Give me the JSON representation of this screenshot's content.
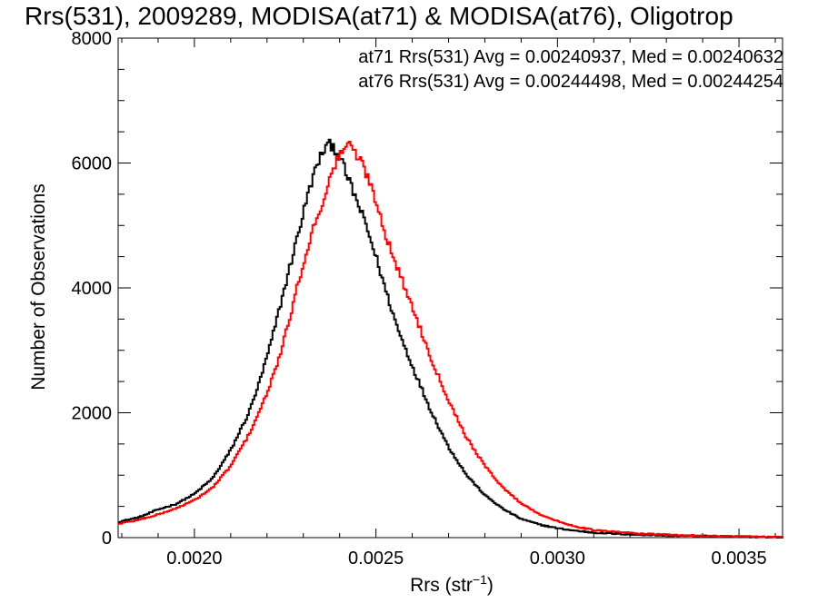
{
  "chart_data": {
    "type": "line",
    "title": "Rrs(531), 2009289, MODISA(at71) & MODISA(at76), Oligotrop",
    "xlabel": "Rrs (str",
    "xlabel_sup": "−1",
    "xlabel_close": ")",
    "ylabel": "Number of Observations",
    "xlim": [
      0.00179,
      0.00362
    ],
    "ylim": [
      0,
      8000
    ],
    "x_ticks": [
      0.002,
      0.0025,
      0.003,
      0.0035
    ],
    "x_tick_labels": [
      "0.0020",
      "0.0025",
      "0.0030",
      "0.0035"
    ],
    "y_ticks": [
      0,
      2000,
      4000,
      6000,
      8000
    ],
    "y_tick_labels": [
      "0",
      "2000",
      "4000",
      "6000",
      "8000"
    ],
    "legend_position": "top-right",
    "annotations": [
      {
        "text": "at71 Rrs(531) Avg = 0.00240937, Med = 0.00240632",
        "color": "#000000"
      },
      {
        "text": "at76 Rrs(531) Avg = 0.00244498, Med = 0.00244254",
        "color": "#ff0000"
      }
    ],
    "series": [
      {
        "color": "#000000",
        "x": [
          0.00179,
          0.00185,
          0.0019,
          0.00195,
          0.002,
          0.00205,
          0.0021,
          0.00215,
          0.00218,
          0.00221,
          0.00224,
          0.00227,
          0.0023,
          0.00232,
          0.00234,
          0.00236,
          0.00238,
          0.0024,
          0.00242,
          0.00244,
          0.00247,
          0.0025,
          0.00253,
          0.00256,
          0.0026,
          0.00265,
          0.0027,
          0.00275,
          0.0028,
          0.00285,
          0.0029,
          0.00295,
          0.003,
          0.00305,
          0.0031,
          0.0032,
          0.0033,
          0.0034,
          0.0035,
          0.00362
        ],
        "y": [
          250,
          330,
          450,
          540,
          700,
          950,
          1400,
          2000,
          2500,
          3100,
          3800,
          4500,
          5200,
          5650,
          6000,
          6250,
          6300,
          6100,
          5800,
          5500,
          5050,
          4500,
          3900,
          3350,
          2750,
          2050,
          1450,
          1000,
          680,
          460,
          300,
          210,
          150,
          110,
          80,
          50,
          35,
          25,
          15,
          8
        ]
      },
      {
        "color": "#ff0000",
        "x": [
          0.00179,
          0.00185,
          0.0019,
          0.00195,
          0.002,
          0.00205,
          0.0021,
          0.00215,
          0.0022,
          0.00224,
          0.00227,
          0.0023,
          0.00233,
          0.00236,
          0.00238,
          0.0024,
          0.00242,
          0.00244,
          0.00246,
          0.00248,
          0.0025,
          0.00253,
          0.00256,
          0.0026,
          0.00265,
          0.0027,
          0.00275,
          0.0028,
          0.00285,
          0.0029,
          0.00295,
          0.003,
          0.00305,
          0.0031,
          0.0032,
          0.0033,
          0.0034,
          0.0035,
          0.00362
        ],
        "y": [
          220,
          290,
          370,
          470,
          600,
          800,
          1150,
          1650,
          2300,
          3000,
          3700,
          4400,
          5000,
          5500,
          5850,
          6150,
          6300,
          6200,
          6000,
          5750,
          5400,
          4800,
          4300,
          3700,
          2900,
          2200,
          1600,
          1150,
          800,
          550,
          380,
          260,
          180,
          120,
          75,
          45,
          30,
          18,
          10
        ]
      }
    ]
  }
}
